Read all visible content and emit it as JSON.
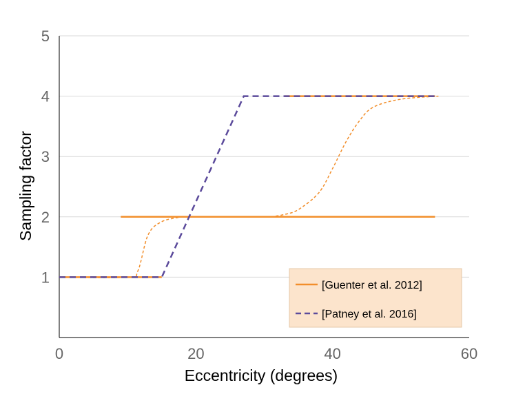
{
  "chart_data": {
    "type": "line",
    "xlabel": "Eccentricity (degrees)",
    "ylabel": "Sampling factor",
    "xlim": [
      0,
      60
    ],
    "ylim": [
      0,
      5
    ],
    "x_ticks": [
      "0",
      "20",
      "40",
      "60"
    ],
    "y_ticks": [
      "1",
      "2",
      "3",
      "4",
      "5"
    ],
    "grid": "horizontal",
    "legend_position": "bottom-right",
    "series": [
      {
        "name": "[Guenter et al. 2012]",
        "style": "solid",
        "color": "#F28E2B",
        "segments": [
          [
            [
              0,
              1
            ],
            [
              15,
              1
            ]
          ],
          [
            [
              9,
              2
            ],
            [
              55,
              2
            ]
          ],
          [
            [
              33,
              4
            ],
            [
              55,
              4
            ]
          ]
        ]
      },
      {
        "name": "[Patney et al. 2016]",
        "style": "dashed",
        "color": "#5B4A9B",
        "points": [
          [
            0,
            1
          ],
          [
            15,
            1
          ],
          [
            27,
            4
          ],
          [
            55.5,
            4
          ]
        ]
      },
      {
        "name": "",
        "style": "dotted",
        "color": "#F28E2B",
        "segments": [
          [
            [
              0,
              1
            ],
            [
              10,
              1
            ],
            [
              11.5,
              1.1
            ],
            [
              13,
              1.7
            ],
            [
              15,
              1.92
            ],
            [
              18,
              2
            ]
          ],
          [
            [
              31,
              2
            ],
            [
              33,
              2.04
            ],
            [
              35,
              2.12
            ],
            [
              38,
              2.4
            ],
            [
              40,
              2.8
            ],
            [
              42,
              3.25
            ],
            [
              44,
              3.6
            ],
            [
              46,
              3.82
            ],
            [
              50,
              3.95
            ],
            [
              55.5,
              4
            ]
          ]
        ]
      }
    ]
  },
  "colors": {
    "legend_background": "#FCE4CC",
    "grid": "#D9D9D9"
  }
}
